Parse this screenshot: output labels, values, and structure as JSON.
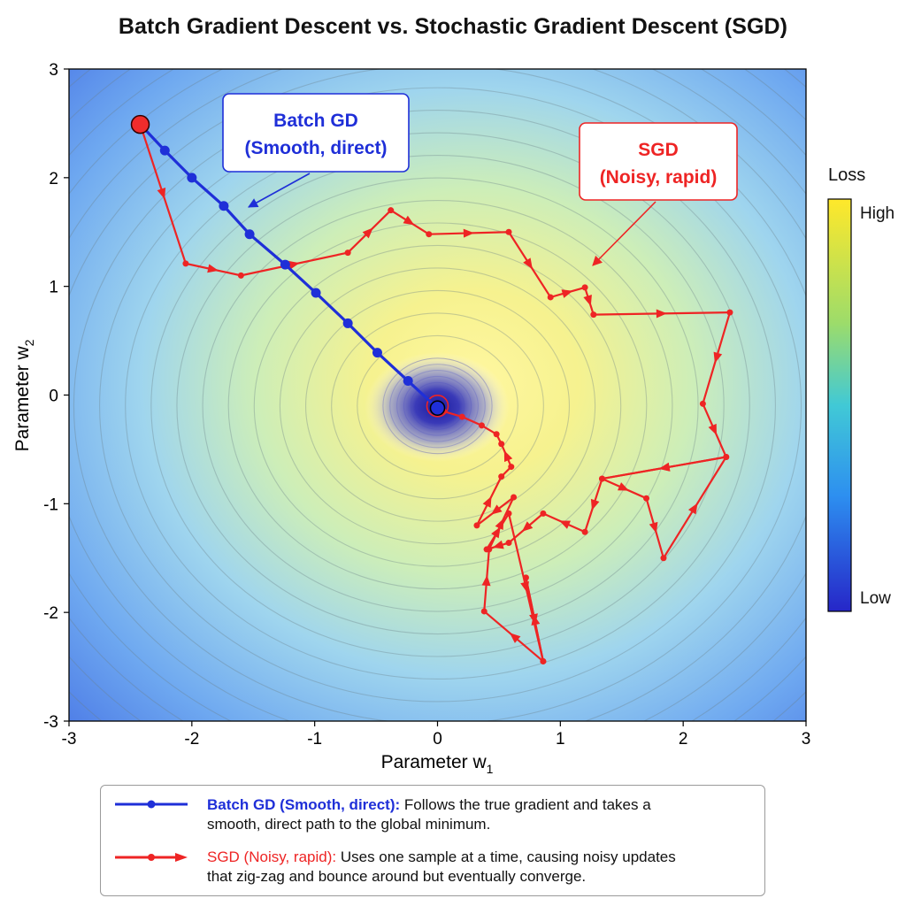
{
  "chart_data": {
    "type": "line",
    "title": "Batch Gradient Descent vs. Stochastic Gradient Descent (SGD)",
    "xlabel_base": "Parameter w",
    "xlabel_sub": "1",
    "ylabel_base": "Parameter w",
    "ylabel_sub": "2",
    "xlim": [
      -3,
      3
    ],
    "ylim": [
      -3,
      3
    ],
    "xticks": [
      "-3",
      "-2",
      "-1",
      "0",
      "1",
      "2",
      "3"
    ],
    "yticks": [
      "-3",
      "-2",
      "-1",
      "0",
      "1",
      "2",
      "3"
    ],
    "colorbar": {
      "title": "Loss",
      "high_label": "High",
      "low_label": "Low",
      "high_color": "#ffe82a",
      "low_color": "#2626c8"
    },
    "series": [
      {
        "name": "Batch GD",
        "color": "#1f2fd8",
        "x": [
          -2.42,
          -2.22,
          -2.0,
          -1.74,
          -1.53,
          -1.24,
          -0.99,
          -0.73,
          -0.49,
          -0.24,
          0.0
        ],
        "y": [
          2.49,
          2.25,
          2.0,
          1.74,
          1.48,
          1.2,
          0.94,
          0.66,
          0.39,
          0.13,
          -0.12
        ]
      },
      {
        "name": "SGD",
        "color": "#ee2424",
        "x": [
          -2.42,
          -2.05,
          -1.6,
          -0.73,
          -0.38,
          -0.07,
          0.58,
          0.92,
          1.2,
          1.27,
          2.38,
          2.16,
          2.35,
          1.34,
          1.7,
          1.84,
          2.35,
          1.34,
          1.2,
          0.86,
          0.58,
          0.4,
          0.58,
          0.86,
          0.72,
          0.86,
          0.38,
          0.42,
          0.62,
          0.32,
          0.52,
          0.6,
          0.52,
          0.48,
          0.36,
          0.2,
          0.05,
          0.0
        ],
        "y": [
          2.49,
          1.21,
          1.1,
          1.31,
          1.7,
          1.48,
          1.5,
          0.9,
          0.99,
          0.74,
          0.76,
          -0.08,
          -0.57,
          -0.77,
          -0.95,
          -1.5,
          -0.57,
          -0.77,
          -1.26,
          -1.09,
          -1.36,
          -1.42,
          -1.09,
          -2.45,
          -1.68,
          -2.45,
          -1.99,
          -1.42,
          -0.94,
          -1.2,
          -0.75,
          -0.66,
          -0.45,
          -0.36,
          -0.28,
          -0.2,
          -0.15,
          -0.1
        ]
      }
    ],
    "annotations": [
      {
        "line1": "Batch GD",
        "line2": "(Smooth, direct)",
        "color": "#1f2fd8"
      },
      {
        "line1": "SGD",
        "line2": "(Noisy, rapid)",
        "color": "#ee2424"
      }
    ],
    "legend": [
      {
        "label": "Batch GD (Smooth, direct):",
        "line1_rest": " Follows the true gradient and takes a",
        "line2": "smooth, direct path to the global minimum.",
        "color": "#1f2fd8"
      },
      {
        "label": "SGD (Noisy, rapid):",
        "line1_rest": " Uses one sample at a time, causing noisy updates",
        "line2": "that zig-zag and bounce around but eventually converge.",
        "color": "#ee2424"
      }
    ]
  }
}
